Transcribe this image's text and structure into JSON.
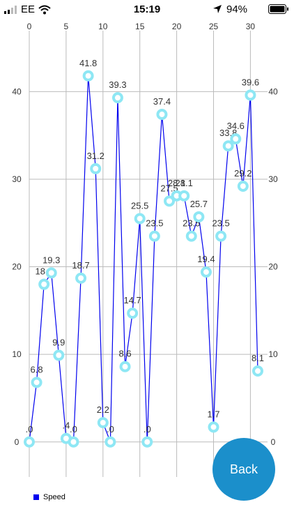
{
  "status_bar": {
    "carrier": "EE",
    "time": "15:19",
    "battery": "94%",
    "icons": [
      "signal-icon",
      "wifi-icon",
      "location-arrow-icon",
      "battery-icon"
    ]
  },
  "back_button": {
    "label": "Back"
  },
  "legend": {
    "label": "Speed",
    "color": "#0000ee"
  },
  "colors": {
    "line": "#0000ee",
    "marker": "#8ee7f4",
    "grid": "#bbbbbb",
    "back": "#1b8fcb"
  },
  "chart_data": {
    "type": "line",
    "x_ticks": [
      0,
      5,
      10,
      15,
      20,
      25,
      30
    ],
    "y_ticks": [
      0,
      10,
      20,
      30,
      40
    ],
    "xlim": [
      0,
      31
    ],
    "ylim": [
      -4,
      46
    ],
    "grid": true,
    "legend_position": "bottom-left",
    "series": [
      {
        "name": "Speed",
        "x": [
          0,
          1,
          2,
          3,
          4,
          5,
          6,
          7,
          8,
          9,
          10,
          11,
          12,
          13,
          14,
          15,
          16,
          17,
          18,
          19,
          20,
          21,
          22,
          23,
          24,
          25,
          26,
          27,
          28,
          29,
          30,
          31
        ],
        "values": [
          0,
          6.8,
          18.0,
          19.3,
          9.9,
          0.4,
          0,
          18.7,
          41.8,
          31.2,
          2.2,
          0,
          39.3,
          8.6,
          14.7,
          25.5,
          0,
          23.5,
          37.4,
          27.5,
          28.1,
          28.1,
          23.5,
          25.7,
          19.4,
          1.7,
          23.5,
          33.8,
          34.6,
          29.2,
          39.6,
          8.1
        ],
        "labels": [
          ".0",
          "6.8",
          "18.0",
          "19.3",
          "9.9",
          ".4",
          ".0",
          "18.7",
          "41.8",
          "31.2",
          "2.2",
          ".0",
          "39.3",
          "8.6",
          "14.7",
          "25.5",
          ".0",
          "23.5",
          "37.4",
          "27.5",
          "28.1",
          "28.1",
          "23.5",
          "25.7",
          "19.4",
          "1.7",
          "23.5",
          "33.8",
          "34.6",
          "29.2",
          "39.6",
          "8.1"
        ]
      }
    ]
  }
}
